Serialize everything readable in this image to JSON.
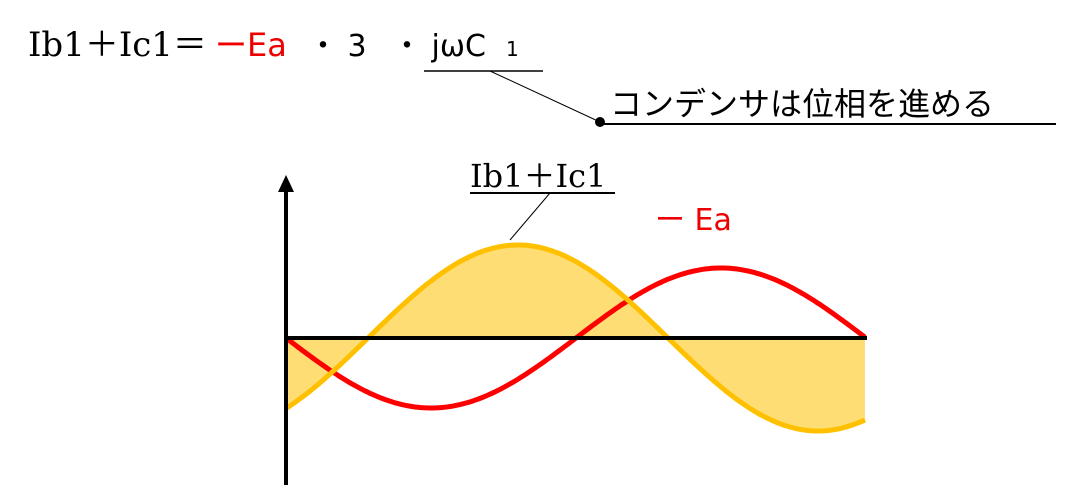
{
  "equation": {
    "lhs": "Ib1＋Ic1＝",
    "neg_ea": "ーEa",
    "factor3": "・ 3",
    "jwc": "・ jωC",
    "jwc_sub": "1"
  },
  "annotation": "コンデンサは位相を進める",
  "graph": {
    "sum_label": "Ib1＋Ic1",
    "ea_label": "ー Ea"
  }
}
